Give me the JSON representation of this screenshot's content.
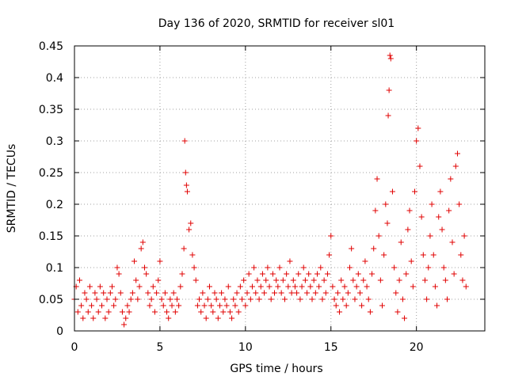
{
  "chart_data": {
    "type": "scatter",
    "title": "Day 136 of 2020, SRMTID for receiver sl01",
    "xlabel": "GPS time / hours",
    "ylabel": "SRMTID / TECUs",
    "xlim": [
      0,
      24
    ],
    "ylim": [
      0,
      0.45
    ],
    "xticks": [
      0,
      5,
      10,
      15,
      20
    ],
    "yticks": [
      0,
      0.05,
      0.1,
      0.15,
      0.2,
      0.25,
      0.3,
      0.35,
      0.4,
      0.45
    ],
    "grid": true,
    "marker": "+",
    "color": "#e00000",
    "series": [
      {
        "name": "sl01",
        "points": [
          [
            0.0,
            0.05
          ],
          [
            0.1,
            0.07
          ],
          [
            0.2,
            0.03
          ],
          [
            0.3,
            0.08
          ],
          [
            0.4,
            0.04
          ],
          [
            0.5,
            0.02
          ],
          [
            0.6,
            0.06
          ],
          [
            0.7,
            0.05
          ],
          [
            0.8,
            0.03
          ],
          [
            0.9,
            0.07
          ],
          [
            1.0,
            0.04
          ],
          [
            1.1,
            0.02
          ],
          [
            1.2,
            0.06
          ],
          [
            1.3,
            0.05
          ],
          [
            1.4,
            0.03
          ],
          [
            1.5,
            0.07
          ],
          [
            1.6,
            0.04
          ],
          [
            1.7,
            0.06
          ],
          [
            1.8,
            0.02
          ],
          [
            1.9,
            0.05
          ],
          [
            2.0,
            0.03
          ],
          [
            2.1,
            0.06
          ],
          [
            2.2,
            0.07
          ],
          [
            2.3,
            0.04
          ],
          [
            2.4,
            0.05
          ],
          [
            2.5,
            0.1
          ],
          [
            2.6,
            0.09
          ],
          [
            2.7,
            0.06
          ],
          [
            2.8,
            0.03
          ],
          [
            2.9,
            0.01
          ],
          [
            3.0,
            0.02
          ],
          [
            3.1,
            0.04
          ],
          [
            3.2,
            0.03
          ],
          [
            3.3,
            0.05
          ],
          [
            3.4,
            0.06
          ],
          [
            3.5,
            0.11
          ],
          [
            3.6,
            0.08
          ],
          [
            3.7,
            0.05
          ],
          [
            3.8,
            0.07
          ],
          [
            3.9,
            0.13
          ],
          [
            4.0,
            0.14
          ],
          [
            4.1,
            0.1
          ],
          [
            4.2,
            0.09
          ],
          [
            4.3,
            0.06
          ],
          [
            4.4,
            0.04
          ],
          [
            4.5,
            0.05
          ],
          [
            4.6,
            0.07
          ],
          [
            4.7,
            0.03
          ],
          [
            4.8,
            0.06
          ],
          [
            4.9,
            0.08
          ],
          [
            5.0,
            0.11
          ],
          [
            5.1,
            0.05
          ],
          [
            5.2,
            0.04
          ],
          [
            5.3,
            0.06
          ],
          [
            5.4,
            0.03
          ],
          [
            5.5,
            0.02
          ],
          [
            5.6,
            0.05
          ],
          [
            5.7,
            0.04
          ],
          [
            5.8,
            0.06
          ],
          [
            5.9,
            0.03
          ],
          [
            6.0,
            0.05
          ],
          [
            6.1,
            0.04
          ],
          [
            6.2,
            0.07
          ],
          [
            6.3,
            0.09
          ],
          [
            6.4,
            0.13
          ],
          [
            6.45,
            0.3
          ],
          [
            6.5,
            0.25
          ],
          [
            6.55,
            0.23
          ],
          [
            6.6,
            0.22
          ],
          [
            6.7,
            0.16
          ],
          [
            6.8,
            0.17
          ],
          [
            6.9,
            0.12
          ],
          [
            7.0,
            0.1
          ],
          [
            7.1,
            0.08
          ],
          [
            7.2,
            0.04
          ],
          [
            7.3,
            0.05
          ],
          [
            7.4,
            0.03
          ],
          [
            7.5,
            0.06
          ],
          [
            7.6,
            0.04
          ],
          [
            7.7,
            0.02
          ],
          [
            7.8,
            0.05
          ],
          [
            7.9,
            0.07
          ],
          [
            8.0,
            0.04
          ],
          [
            8.1,
            0.03
          ],
          [
            8.2,
            0.06
          ],
          [
            8.3,
            0.05
          ],
          [
            8.4,
            0.02
          ],
          [
            8.5,
            0.04
          ],
          [
            8.6,
            0.06
          ],
          [
            8.7,
            0.03
          ],
          [
            8.8,
            0.05
          ],
          [
            8.9,
            0.04
          ],
          [
            9.0,
            0.07
          ],
          [
            9.1,
            0.03
          ],
          [
            9.2,
            0.02
          ],
          [
            9.3,
            0.05
          ],
          [
            9.4,
            0.04
          ],
          [
            9.5,
            0.06
          ],
          [
            9.6,
            0.03
          ],
          [
            9.7,
            0.07
          ],
          [
            9.8,
            0.05
          ],
          [
            9.9,
            0.08
          ],
          [
            10.0,
            0.04
          ],
          [
            10.1,
            0.06
          ],
          [
            10.2,
            0.09
          ],
          [
            10.3,
            0.05
          ],
          [
            10.4,
            0.07
          ],
          [
            10.5,
            0.1
          ],
          [
            10.6,
            0.06
          ],
          [
            10.7,
            0.08
          ],
          [
            10.8,
            0.05
          ],
          [
            10.9,
            0.07
          ],
          [
            11.0,
            0.09
          ],
          [
            11.1,
            0.06
          ],
          [
            11.2,
            0.08
          ],
          [
            11.3,
            0.1
          ],
          [
            11.4,
            0.07
          ],
          [
            11.5,
            0.05
          ],
          [
            11.6,
            0.09
          ],
          [
            11.7,
            0.06
          ],
          [
            11.8,
            0.08
          ],
          [
            11.9,
            0.07
          ],
          [
            12.0,
            0.1
          ],
          [
            12.1,
            0.06
          ],
          [
            12.2,
            0.08
          ],
          [
            12.3,
            0.05
          ],
          [
            12.4,
            0.09
          ],
          [
            12.5,
            0.07
          ],
          [
            12.6,
            0.11
          ],
          [
            12.7,
            0.06
          ],
          [
            12.8,
            0.08
          ],
          [
            12.9,
            0.07
          ],
          [
            13.0,
            0.06
          ],
          [
            13.1,
            0.09
          ],
          [
            13.2,
            0.05
          ],
          [
            13.3,
            0.07
          ],
          [
            13.4,
            0.1
          ],
          [
            13.5,
            0.08
          ],
          [
            13.6,
            0.06
          ],
          [
            13.7,
            0.09
          ],
          [
            13.8,
            0.07
          ],
          [
            13.9,
            0.05
          ],
          [
            14.0,
            0.08
          ],
          [
            14.1,
            0.06
          ],
          [
            14.2,
            0.09
          ],
          [
            14.3,
            0.07
          ],
          [
            14.4,
            0.1
          ],
          [
            14.5,
            0.05
          ],
          [
            14.6,
            0.08
          ],
          [
            14.7,
            0.06
          ],
          [
            14.8,
            0.09
          ],
          [
            14.9,
            0.12
          ],
          [
            15.0,
            0.15
          ],
          [
            15.1,
            0.07
          ],
          [
            15.2,
            0.05
          ],
          [
            15.3,
            0.04
          ],
          [
            15.4,
            0.06
          ],
          [
            15.5,
            0.03
          ],
          [
            15.6,
            0.08
          ],
          [
            15.7,
            0.05
          ],
          [
            15.8,
            0.07
          ],
          [
            15.9,
            0.04
          ],
          [
            16.0,
            0.06
          ],
          [
            16.1,
            0.1
          ],
          [
            16.2,
            0.13
          ],
          [
            16.3,
            0.08
          ],
          [
            16.4,
            0.05
          ],
          [
            16.5,
            0.07
          ],
          [
            16.6,
            0.09
          ],
          [
            16.7,
            0.06
          ],
          [
            16.8,
            0.04
          ],
          [
            16.9,
            0.08
          ],
          [
            17.0,
            0.11
          ],
          [
            17.1,
            0.07
          ],
          [
            17.2,
            0.05
          ],
          [
            17.3,
            0.03
          ],
          [
            17.4,
            0.09
          ],
          [
            17.5,
            0.13
          ],
          [
            17.6,
            0.19
          ],
          [
            17.7,
            0.24
          ],
          [
            17.8,
            0.15
          ],
          [
            17.9,
            0.08
          ],
          [
            18.0,
            0.04
          ],
          [
            18.1,
            0.12
          ],
          [
            18.2,
            0.2
          ],
          [
            18.3,
            0.17
          ],
          [
            18.35,
            0.34
          ],
          [
            18.4,
            0.38
          ],
          [
            18.45,
            0.435
          ],
          [
            18.5,
            0.43
          ],
          [
            18.6,
            0.22
          ],
          [
            18.7,
            0.1
          ],
          [
            18.8,
            0.06
          ],
          [
            18.9,
            0.03
          ],
          [
            19.0,
            0.08
          ],
          [
            19.1,
            0.14
          ],
          [
            19.2,
            0.05
          ],
          [
            19.3,
            0.02
          ],
          [
            19.4,
            0.09
          ],
          [
            19.5,
            0.16
          ],
          [
            19.6,
            0.19
          ],
          [
            19.7,
            0.11
          ],
          [
            19.8,
            0.07
          ],
          [
            19.9,
            0.22
          ],
          [
            20.0,
            0.3
          ],
          [
            20.1,
            0.32
          ],
          [
            20.2,
            0.26
          ],
          [
            20.3,
            0.18
          ],
          [
            20.4,
            0.12
          ],
          [
            20.5,
            0.08
          ],
          [
            20.6,
            0.05
          ],
          [
            20.7,
            0.1
          ],
          [
            20.8,
            0.15
          ],
          [
            20.9,
            0.2
          ],
          [
            21.0,
            0.12
          ],
          [
            21.1,
            0.07
          ],
          [
            21.2,
            0.04
          ],
          [
            21.3,
            0.18
          ],
          [
            21.4,
            0.22
          ],
          [
            21.5,
            0.16
          ],
          [
            21.6,
            0.1
          ],
          [
            21.7,
            0.08
          ],
          [
            21.8,
            0.05
          ],
          [
            21.9,
            0.19
          ],
          [
            22.0,
            0.24
          ],
          [
            22.1,
            0.14
          ],
          [
            22.2,
            0.09
          ],
          [
            22.3,
            0.26
          ],
          [
            22.4,
            0.28
          ],
          [
            22.5,
            0.2
          ],
          [
            22.6,
            0.12
          ],
          [
            22.7,
            0.08
          ],
          [
            22.8,
            0.15
          ],
          [
            22.9,
            0.07
          ]
        ]
      }
    ]
  }
}
